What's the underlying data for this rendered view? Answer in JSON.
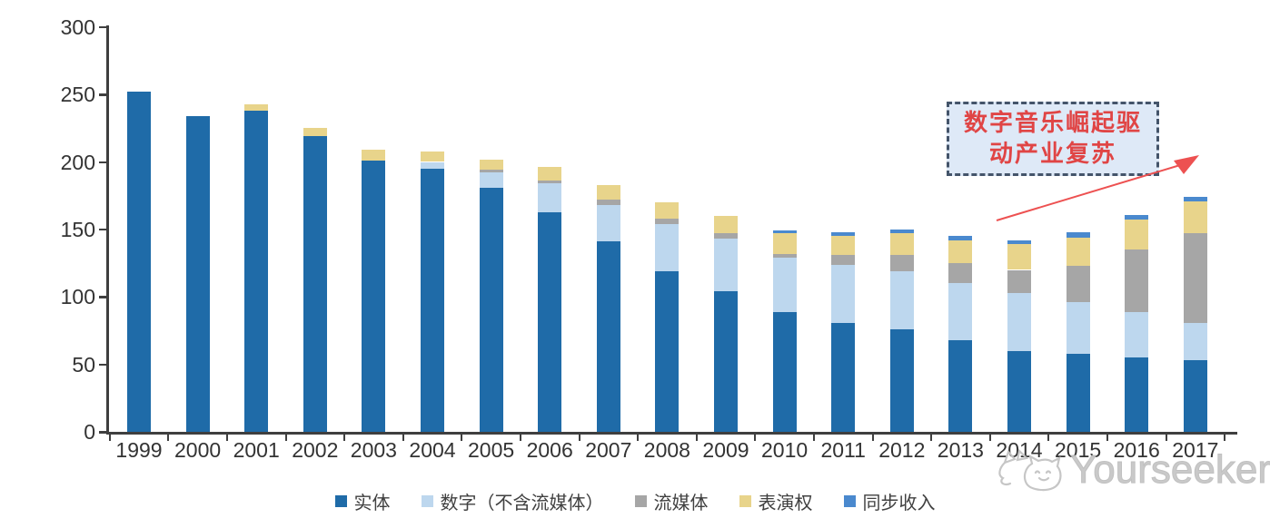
{
  "chart_data": {
    "type": "bar",
    "variant": "stacked",
    "title": "",
    "xlabel": "",
    "ylabel": "",
    "ylim": [
      0,
      300
    ],
    "yticks": [
      0,
      50,
      100,
      150,
      200,
      250,
      300
    ],
    "grid": false,
    "legend_position": "bottom",
    "categories": [
      "1999",
      "2000",
      "2001",
      "2002",
      "2003",
      "2004",
      "2005",
      "2006",
      "2007",
      "2008",
      "2009",
      "2010",
      "2011",
      "2012",
      "2013",
      "2014",
      "2015",
      "2016",
      "2017"
    ],
    "series": [
      {
        "name": "实体",
        "color": "#1F6BA8",
        "values": [
          252,
          234,
          238,
          219,
          201,
          195,
          181,
          163,
          141,
          119,
          104,
          89,
          81,
          76,
          68,
          60,
          58,
          55,
          53
        ]
      },
      {
        "name": "数字（不含流媒体）",
        "color": "#BDD7EE",
        "values": [
          0,
          0,
          0,
          0,
          0,
          5,
          11,
          21,
          27,
          35,
          39,
          40,
          43,
          43,
          42,
          43,
          38,
          34,
          28
        ]
      },
      {
        "name": "流媒体",
        "color": "#A6A6A6",
        "values": [
          0,
          0,
          0,
          0,
          0,
          0,
          2,
          2,
          4,
          4,
          4,
          3,
          7,
          12,
          15,
          17,
          27,
          46,
          66
        ]
      },
      {
        "name": "表演权",
        "color": "#E8D48B",
        "values": [
          0,
          0,
          5,
          6,
          8,
          8,
          8,
          10,
          11,
          12,
          13,
          15,
          14,
          16,
          17,
          19,
          21,
          22,
          24
        ]
      },
      {
        "name": "同步收入",
        "color": "#4A89CE",
        "values": [
          0,
          0,
          0,
          0,
          0,
          0,
          0,
          0,
          0,
          0,
          0,
          2,
          3,
          3,
          3,
          3,
          4,
          4,
          3
        ]
      }
    ]
  },
  "annotation": {
    "line1": "数字音乐崛起驱",
    "line2": "动产业复苏",
    "box_border_color": "#44546A",
    "box_fill_color": "#DEE9F7",
    "text_color": "#E04545",
    "arrow_color": "#ED5151"
  },
  "watermark": {
    "text": "Yourseeker",
    "color": "#c7c7c7"
  },
  "axis": {
    "line_color": "#3f3f3f",
    "label_color": "#333333"
  }
}
